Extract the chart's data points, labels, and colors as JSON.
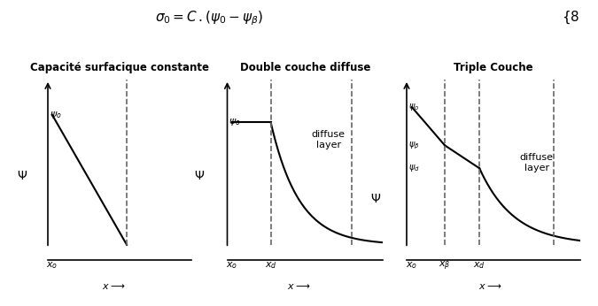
{
  "panel1_title": "Capacité surfacique constante",
  "panel2_title": "Double couche diffuse",
  "panel3_title": "Triple Couche",
  "background_color": "#ffffff",
  "line_color": "#000000",
  "dashed_color": "#666666",
  "text_color": "#000000",
  "formula_fontsize": 11,
  "title_fontsize": 8.5,
  "label_fontsize": 8,
  "annotation_fontsize": 8,
  "psi_fontsize": 10
}
